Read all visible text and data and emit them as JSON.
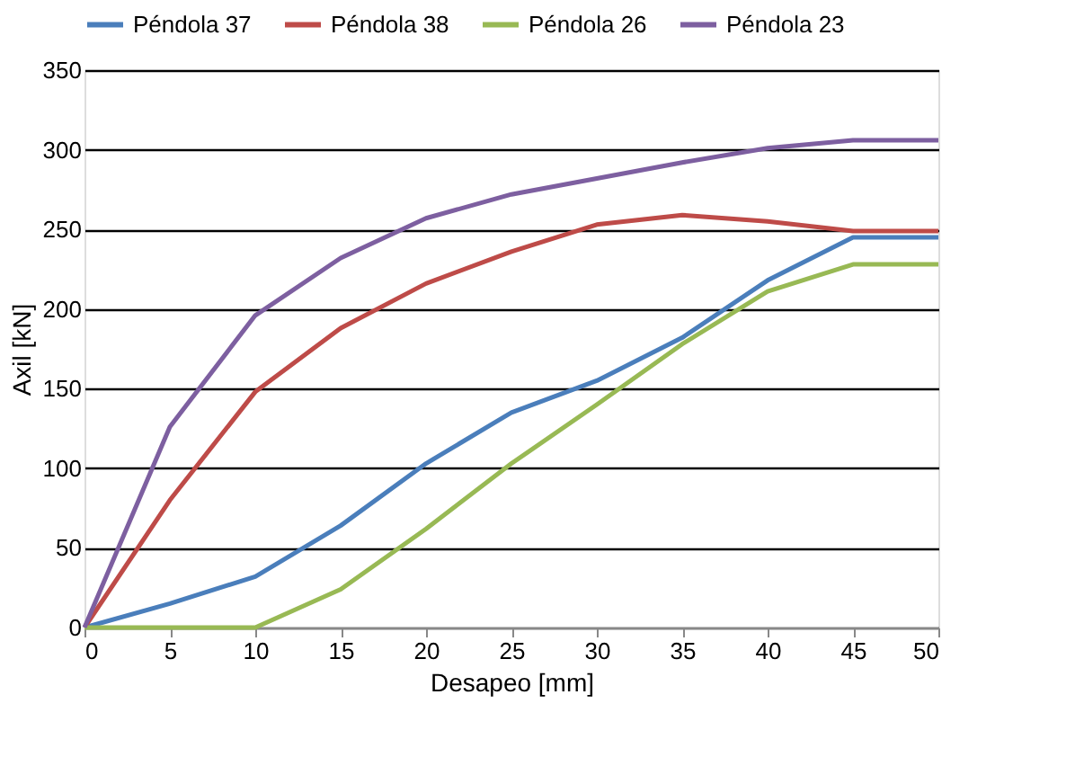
{
  "chart_data": {
    "type": "line",
    "xlabel": "Desapeo [mm]",
    "ylabel": "Axil [kN]",
    "x": [
      0,
      5,
      10,
      15,
      20,
      25,
      30,
      35,
      40,
      45,
      50
    ],
    "series": [
      {
        "name": "Péndola 37",
        "color": "#4a7ebb",
        "values": [
          0,
          15,
          32,
          64,
          103,
          135,
          155,
          182,
          218,
          245,
          245
        ]
      },
      {
        "name": "Péndola 38",
        "color": "#be4b48",
        "values": [
          0,
          80,
          148,
          188,
          216,
          236,
          253,
          259,
          255,
          249,
          249
        ]
      },
      {
        "name": "Péndola 26",
        "color": "#98b954",
        "values": [
          0,
          0,
          0,
          24,
          62,
          103,
          140,
          178,
          211,
          228,
          228
        ]
      },
      {
        "name": "Péndola 23",
        "color": "#7d5fa0",
        "values": [
          0,
          126,
          196,
          232,
          257,
          272,
          282,
          292,
          301,
          306,
          306
        ]
      }
    ],
    "xlim": [
      0,
      50
    ],
    "xticks": [
      0,
      5,
      10,
      15,
      20,
      25,
      30,
      35,
      40,
      45,
      50
    ],
    "ylim": [
      0,
      350
    ],
    "yticks": [
      0,
      50,
      100,
      150,
      200,
      250,
      300,
      350
    ],
    "grid": "y",
    "legend": "top",
    "marker": "none",
    "line_style": "solid"
  }
}
